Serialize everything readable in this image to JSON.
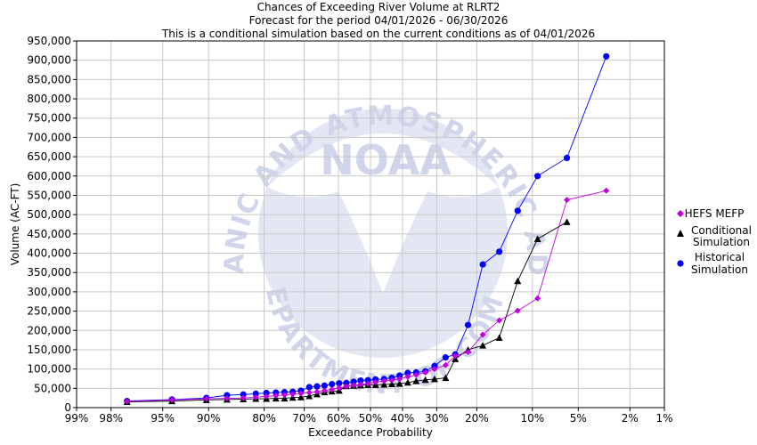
{
  "chart_data": {
    "type": "line",
    "title": [
      "Chances of Exceeding River Volume at RLRT2",
      "Forecast for the period 04/01/2026 - 06/30/2026",
      "This is a conditional simulation based on the current conditions as of 04/01/2026"
    ],
    "xlabel": "Exceedance Probability",
    "ylabel": "Volume (AC-FT)",
    "x_scale": "normal-probability (reversed)",
    "x_ticks": [
      {
        "p": 99,
        "label": "99%"
      },
      {
        "p": 98,
        "label": "98%"
      },
      {
        "p": 95,
        "label": "95%"
      },
      {
        "p": 90,
        "label": "90%"
      },
      {
        "p": 80,
        "label": "80%"
      },
      {
        "p": 70,
        "label": "70%"
      },
      {
        "p": 60,
        "label": "60%"
      },
      {
        "p": 50,
        "label": "50%"
      },
      {
        "p": 40,
        "label": "40%"
      },
      {
        "p": 30,
        "label": "30%"
      },
      {
        "p": 20,
        "label": "20%"
      },
      {
        "p": 10,
        "label": "10%"
      },
      {
        "p": 5,
        "label": "5%"
      },
      {
        "p": 2,
        "label": "2%"
      },
      {
        "p": 1,
        "label": "1%"
      }
    ],
    "ylim": [
      0,
      950000
    ],
    "y_ticks": [
      {
        "v": 0,
        "label": "0"
      },
      {
        "v": 50000,
        "label": "50,000"
      },
      {
        "v": 100000,
        "label": "100,000"
      },
      {
        "v": 150000,
        "label": "150,000"
      },
      {
        "v": 200000,
        "label": "200,000"
      },
      {
        "v": 250000,
        "label": "250,000"
      },
      {
        "v": 300000,
        "label": "300,000"
      },
      {
        "v": 350000,
        "label": "350,000"
      },
      {
        "v": 400000,
        "label": "400,000"
      },
      {
        "v": 450000,
        "label": "450,000"
      },
      {
        "v": 500000,
        "label": "500,000"
      },
      {
        "v": 550000,
        "label": "550,000"
      },
      {
        "v": 600000,
        "label": "600,000"
      },
      {
        "v": 650000,
        "label": "650,000"
      },
      {
        "v": 700000,
        "label": "700,000"
      },
      {
        "v": 750000,
        "label": "750,000"
      },
      {
        "v": 800000,
        "label": "800,000"
      },
      {
        "v": 850000,
        "label": "850,000"
      },
      {
        "v": 900000,
        "label": "900,000"
      },
      {
        "v": 950000,
        "label": "950,000"
      }
    ],
    "grid": true,
    "legend_position": "right",
    "series": [
      {
        "name": "Historical Simulation",
        "legend": [
          "Historical",
          "Simulation"
        ],
        "marker": "circle",
        "color": "#0000ff",
        "points": [
          [
            97.3,
            17000
          ],
          [
            94.2,
            21000
          ],
          [
            90.3,
            25000
          ],
          [
            87.2,
            32000
          ],
          [
            84.3,
            34000
          ],
          [
            81.8,
            36000
          ],
          [
            79.5,
            38000
          ],
          [
            77.3,
            39000
          ],
          [
            75.2,
            40000
          ],
          [
            73.1,
            41000
          ],
          [
            70.9,
            44000
          ],
          [
            68.6,
            53000
          ],
          [
            66.4,
            55000
          ],
          [
            64.2,
            57000
          ],
          [
            62.0,
            61000
          ],
          [
            59.8,
            63000
          ],
          [
            57.6,
            64000
          ],
          [
            55.3,
            67000
          ],
          [
            53.1,
            70000
          ],
          [
            50.8,
            71000
          ],
          [
            48.4,
            73000
          ],
          [
            45.7,
            74000
          ],
          [
            43.3,
            77000
          ],
          [
            40.9,
            83000
          ],
          [
            38.4,
            90000
          ],
          [
            35.9,
            91000
          ],
          [
            33.2,
            94000
          ],
          [
            30.6,
            108000
          ],
          [
            27.6,
            130000
          ],
          [
            25.1,
            138000
          ],
          [
            22.0,
            214000
          ],
          [
            18.7,
            371000
          ],
          [
            15.4,
            404000
          ],
          [
            12.2,
            510000
          ],
          [
            9.3,
            600000
          ],
          [
            6.0,
            647000
          ],
          [
            3.1,
            910000
          ]
        ]
      },
      {
        "name": "Conditional Simulation",
        "legend": [
          "Conditional",
          "Simulation"
        ],
        "marker": "triangle",
        "color": "#000000",
        "points": [
          [
            97.3,
            15000
          ],
          [
            94.2,
            17000
          ],
          [
            90.3,
            20000
          ],
          [
            87.2,
            21000
          ],
          [
            84.3,
            22000
          ],
          [
            81.8,
            23000
          ],
          [
            79.5,
            23000
          ],
          [
            77.3,
            24000
          ],
          [
            75.2,
            24000
          ],
          [
            73.1,
            26000
          ],
          [
            70.9,
            27000
          ],
          [
            68.6,
            30000
          ],
          [
            66.4,
            35000
          ],
          [
            64.2,
            40000
          ],
          [
            62.0,
            42000
          ],
          [
            59.8,
            44000
          ],
          [
            57.6,
            56000
          ],
          [
            55.3,
            57000
          ],
          [
            53.1,
            58000
          ],
          [
            50.8,
            59000
          ],
          [
            48.4,
            59000
          ],
          [
            45.7,
            60000
          ],
          [
            43.3,
            61000
          ],
          [
            40.9,
            62000
          ],
          [
            38.4,
            65000
          ],
          [
            35.9,
            69000
          ],
          [
            33.2,
            72000
          ],
          [
            30.6,
            74000
          ],
          [
            27.6,
            77000
          ],
          [
            25.1,
            126000
          ],
          [
            22.0,
            150000
          ],
          [
            18.7,
            161000
          ],
          [
            15.4,
            181000
          ],
          [
            12.2,
            328000
          ],
          [
            9.3,
            437000
          ],
          [
            6.0,
            481000
          ]
        ]
      },
      {
        "name": "HEFS MEFP",
        "legend": [
          "HEFS MEFP"
        ],
        "marker": "diamond",
        "color": "#c000e0",
        "points": [
          [
            97.3,
            16000
          ],
          [
            94.2,
            20000
          ],
          [
            90.3,
            23000
          ],
          [
            87.2,
            24000
          ],
          [
            84.3,
            25000
          ],
          [
            81.8,
            27000
          ],
          [
            79.5,
            29000
          ],
          [
            77.3,
            31000
          ],
          [
            75.2,
            33000
          ],
          [
            73.1,
            35000
          ],
          [
            70.9,
            37000
          ],
          [
            68.6,
            39000
          ],
          [
            66.4,
            41000
          ],
          [
            64.2,
            44000
          ],
          [
            62.0,
            47000
          ],
          [
            59.8,
            51000
          ],
          [
            57.6,
            55000
          ],
          [
            55.3,
            58000
          ],
          [
            53.1,
            60000
          ],
          [
            50.8,
            62000
          ],
          [
            48.4,
            66000
          ],
          [
            45.7,
            69000
          ],
          [
            43.3,
            71000
          ],
          [
            40.9,
            74000
          ],
          [
            38.4,
            80000
          ],
          [
            35.9,
            85000
          ],
          [
            33.2,
            91000
          ],
          [
            30.6,
            100000
          ],
          [
            27.6,
            110000
          ],
          [
            25.1,
            134000
          ],
          [
            22.0,
            144000
          ],
          [
            18.7,
            189000
          ],
          [
            15.4,
            226000
          ],
          [
            12.2,
            251000
          ],
          [
            9.3,
            283000
          ],
          [
            6.0,
            538000
          ],
          [
            3.1,
            562000
          ]
        ]
      }
    ]
  },
  "watermark": {
    "center_text": "NOAA",
    "ring_top": "NATIONAL OCEANIC AND ATMOSPHERIC ADMINISTRATION",
    "ring_bottom": "U.S. DEPARTMENT OF COMMERCE",
    "color": "#c9cee8"
  }
}
